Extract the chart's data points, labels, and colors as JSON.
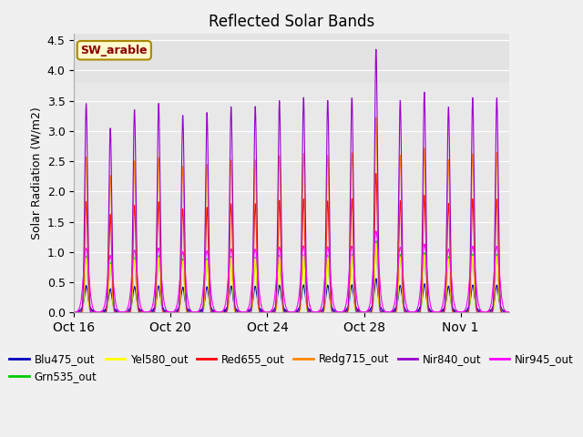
{
  "title": "Reflected Solar Bands",
  "ylabel": "Solar Radiation (W/m2)",
  "xlabel": "",
  "annotation": "SW_arable",
  "ylim": [
    0,
    4.6
  ],
  "yticks": [
    0.0,
    0.5,
    1.0,
    1.5,
    2.0,
    2.5,
    3.0,
    3.5,
    4.0,
    4.5
  ],
  "fig_bg": "#f0f0f0",
  "ax_bg": "#e8e8e8",
  "upper_bg": "#dcdcdc",
  "series": [
    {
      "name": "Blu475_out",
      "color": "#0000bb",
      "scale": 0.3
    },
    {
      "name": "Grn535_out",
      "color": "#00cc00",
      "scale": 0.95
    },
    {
      "name": "Yel580_out",
      "color": "#ffff00",
      "scale": 0.92
    },
    {
      "name": "Red655_out",
      "color": "#ff0000",
      "scale": 1.85
    },
    {
      "name": "Redg715_out",
      "color": "#ff8800",
      "scale": 2.6
    },
    {
      "name": "Nir840_out",
      "color": "#9900cc",
      "scale": 3.5
    },
    {
      "name": "Nir945_out",
      "color": "#ff00ff",
      "scale": 0.72
    }
  ],
  "n_days": 18,
  "pts_per_day": 144,
  "day_peaks": [
    3.45,
    3.05,
    3.35,
    3.45,
    3.25,
    3.3,
    3.4,
    3.4,
    3.5,
    3.55,
    3.5,
    3.55,
    4.35,
    3.5,
    3.65,
    3.4,
    3.55,
    3.55
  ],
  "x_tick_labels": [
    "Oct 16",
    "Oct 20",
    "Oct 24",
    "Oct 28",
    "Nov 1"
  ],
  "x_tick_positions": [
    0,
    4,
    8,
    12,
    16
  ]
}
